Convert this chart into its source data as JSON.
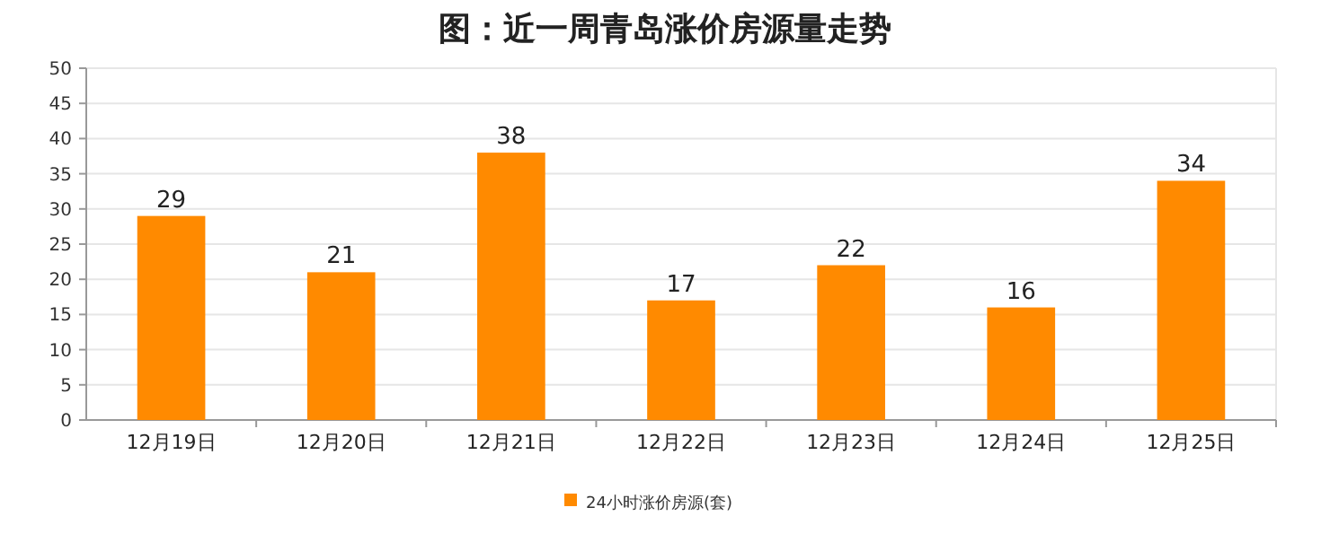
{
  "chart_data": {
    "type": "bar",
    "title": "图：近一周青岛涨价房源量走势",
    "categories": [
      "12月19日",
      "12月20日",
      "12月21日",
      "12月22日",
      "12月23日",
      "12月24日",
      "12月25日"
    ],
    "series": [
      {
        "name": "24小时涨价房源(套)",
        "color": "#ff8a00",
        "values": [
          29,
          21,
          38,
          17,
          22,
          16,
          34
        ]
      }
    ],
    "ylim": [
      0,
      50
    ],
    "yticks": [
      0,
      5,
      10,
      15,
      20,
      25,
      30,
      35,
      40,
      45,
      50
    ],
    "grid": "y",
    "legend": "bottom",
    "data_labels": true
  }
}
